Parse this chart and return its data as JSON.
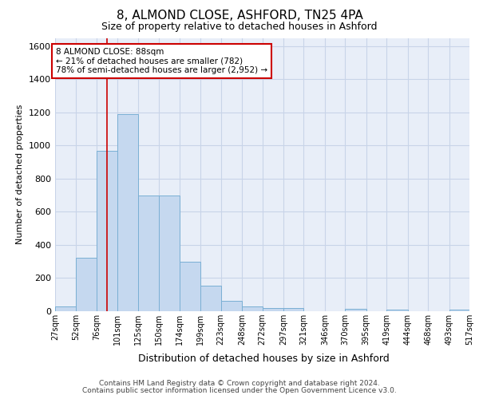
{
  "title_line1": "8, ALMOND CLOSE, ASHFORD, TN25 4PA",
  "title_line2": "Size of property relative to detached houses in Ashford",
  "xlabel": "Distribution of detached houses by size in Ashford",
  "ylabel": "Number of detached properties",
  "footer_line1": "Contains HM Land Registry data © Crown copyright and database right 2024.",
  "footer_line2": "Contains public sector information licensed under the Open Government Licence v3.0.",
  "annotation_line1": "8 ALMOND CLOSE: 88sqm",
  "annotation_line2": "← 21% of detached houses are smaller (782)",
  "annotation_line3": "78% of semi-detached houses are larger (2,952) →",
  "bar_color": "#c5d8ef",
  "bar_edge_color": "#7aafd4",
  "grid_color": "#c8d4e8",
  "vline_color": "#cc0000",
  "vline_x": 88,
  "annotation_box_edge_color": "#cc0000",
  "fig_bg_color": "#ffffff",
  "plot_bg_color": "#e8eef8",
  "ylim": [
    0,
    1650
  ],
  "bin_edges": [
    27,
    52,
    76,
    101,
    125,
    150,
    174,
    199,
    223,
    248,
    272,
    297,
    321,
    346,
    370,
    395,
    419,
    444,
    468,
    493,
    517
  ],
  "bar_heights": [
    30,
    325,
    970,
    1190,
    700,
    700,
    300,
    155,
    65,
    28,
    20,
    20,
    0,
    0,
    15,
    0,
    10,
    0,
    0,
    10
  ],
  "tick_labels": [
    "27sqm",
    "52sqm",
    "76sqm",
    "101sqm",
    "125sqm",
    "150sqm",
    "174sqm",
    "199sqm",
    "223sqm",
    "248sqm",
    "272sqm",
    "297sqm",
    "321sqm",
    "346sqm",
    "370sqm",
    "395sqm",
    "419sqm",
    "444sqm",
    "468sqm",
    "493sqm",
    "517sqm"
  ],
  "yticks": [
    0,
    200,
    400,
    600,
    800,
    1000,
    1200,
    1400,
    1600
  ],
  "title1_fontsize": 11,
  "title2_fontsize": 9,
  "ylabel_fontsize": 8,
  "xlabel_fontsize": 9,
  "ytick_fontsize": 8,
  "xtick_fontsize": 7,
  "annot_fontsize": 7.5,
  "footer_fontsize": 6.5
}
